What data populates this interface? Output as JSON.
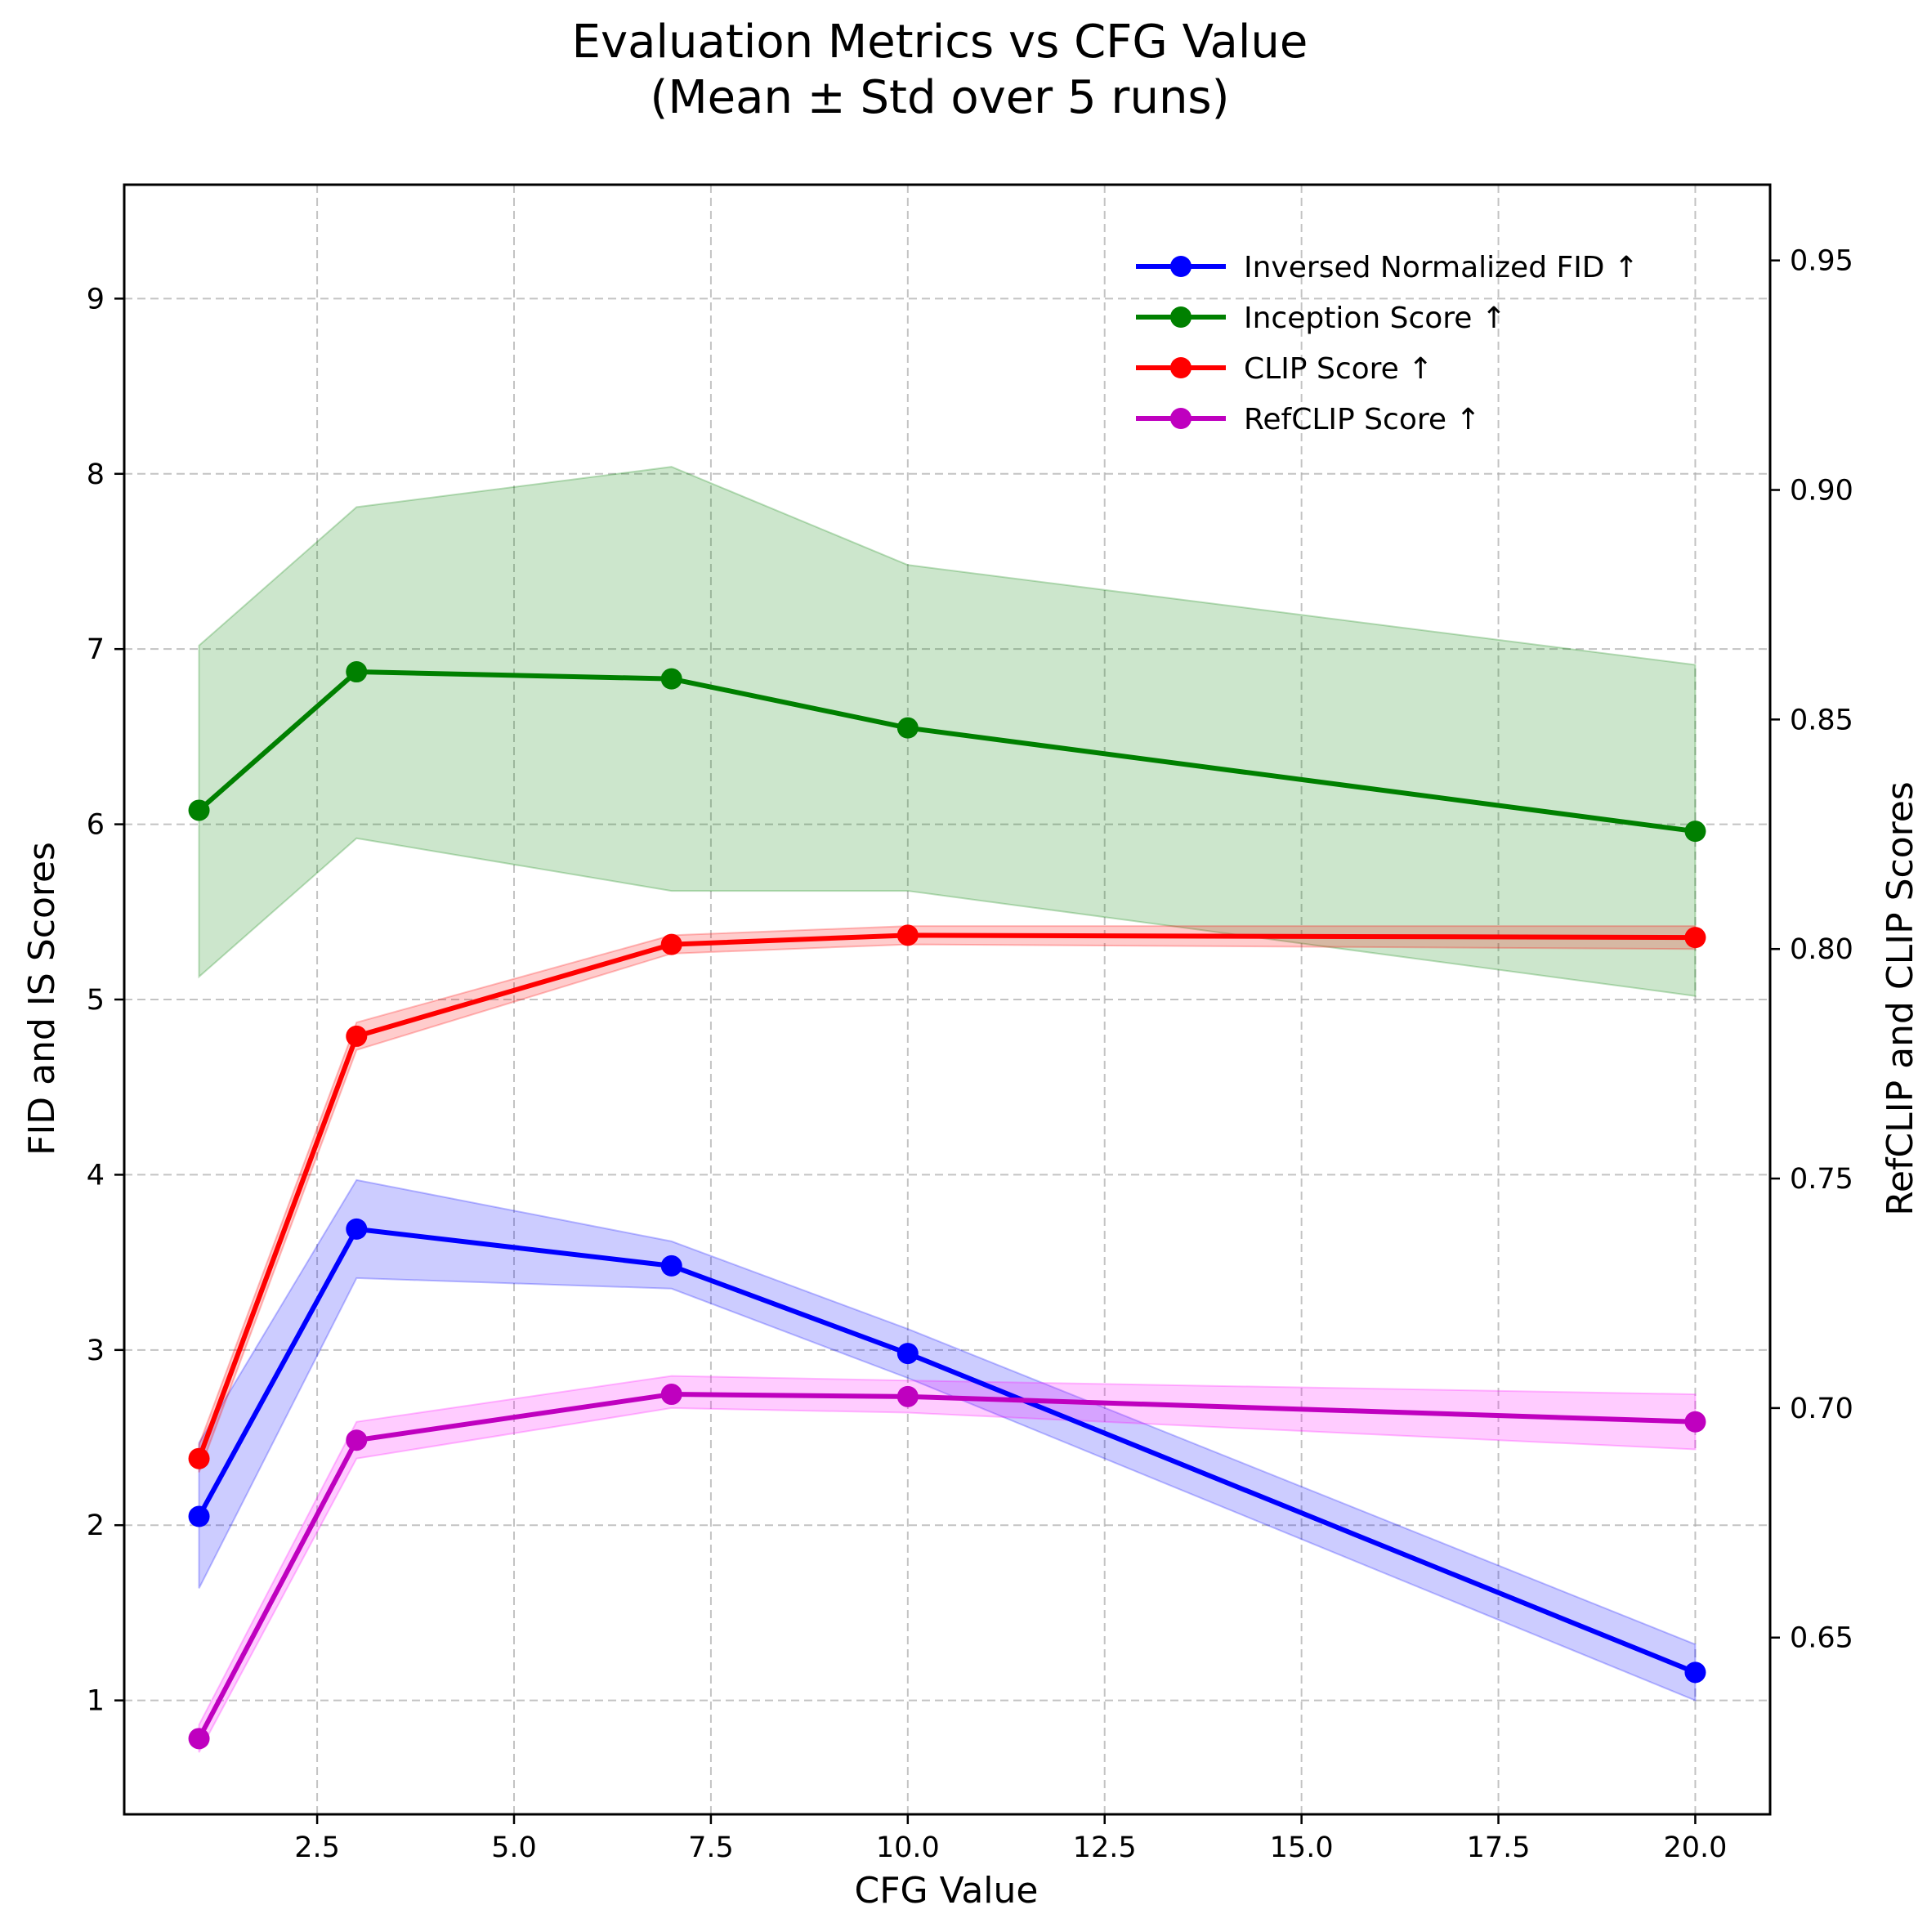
{
  "chart_data": {
    "type": "line",
    "title": "Evaluation Metrics vs CFG Value",
    "subtitle": "(Mean ± Std over 5 runs)",
    "xlabel": "CFG Value",
    "ylabel_left": "FID and IS Scores",
    "ylabel_right": "RefCLIP and CLIP Scores",
    "xlim": [
      0.05,
      20.95
    ],
    "ylim_left": [
      0.35,
      9.65
    ],
    "ylim_right": [
      0.6115,
      0.9665
    ],
    "x_ticks": [
      2.5,
      5.0,
      7.5,
      10.0,
      12.5,
      15.0,
      17.5,
      20.0
    ],
    "x_tick_labels": [
      "2.5",
      "5.0",
      "7.5",
      "10.0",
      "12.5",
      "15.0",
      "17.5",
      "20.0"
    ],
    "y_left_ticks": [
      1,
      2,
      3,
      4,
      5,
      6,
      7,
      8,
      9
    ],
    "y_left_tick_labels": [
      "1",
      "2",
      "3",
      "4",
      "5",
      "6",
      "7",
      "8",
      "9"
    ],
    "y_right_ticks": [
      0.65,
      0.7,
      0.75,
      0.8,
      0.85,
      0.9,
      0.95
    ],
    "y_right_tick_labels": [
      "0.65",
      "0.70",
      "0.75",
      "0.80",
      "0.85",
      "0.90",
      "0.95"
    ],
    "grid": true,
    "legend_position": "top-right",
    "x": [
      1,
      3,
      7,
      10,
      20
    ],
    "series": [
      {
        "name": "Inversed Normalized FID ↑",
        "axis": "left",
        "color": "#0000ff",
        "band_color": "#0000ff",
        "mean": [
          2.05,
          3.69,
          3.48,
          2.98,
          1.16
        ],
        "lower": [
          1.64,
          3.41,
          3.35,
          2.84,
          1.0
        ],
        "upper": [
          2.47,
          3.97,
          3.62,
          3.12,
          1.32
        ]
      },
      {
        "name": "Inception Score ↑",
        "axis": "left",
        "color": "#008000",
        "band_color": "#008000",
        "mean": [
          6.08,
          6.87,
          6.83,
          6.55,
          5.96
        ],
        "lower": [
          5.13,
          5.92,
          5.62,
          5.62,
          5.02
        ],
        "upper": [
          7.02,
          7.81,
          8.04,
          7.48,
          6.91
        ]
      },
      {
        "name": "CLIP Score ↑",
        "axis": "right",
        "color": "#ff0000",
        "band_color": "#ff0000",
        "mean": [
          0.689,
          0.781,
          0.801,
          0.803,
          0.8025
        ],
        "lower": [
          0.686,
          0.778,
          0.799,
          0.801,
          0.8
        ],
        "upper": [
          0.692,
          0.784,
          0.803,
          0.805,
          0.805
        ]
      },
      {
        "name": "RefCLIP Score ↑",
        "axis": "right",
        "color": "#bf00bf",
        "band_color": "#ff00ff",
        "mean": [
          0.628,
          0.693,
          0.703,
          0.7025,
          0.697
        ],
        "lower": [
          0.625,
          0.689,
          0.7,
          0.699,
          0.691
        ],
        "upper": [
          0.631,
          0.697,
          0.707,
          0.706,
          0.703
        ]
      }
    ]
  }
}
